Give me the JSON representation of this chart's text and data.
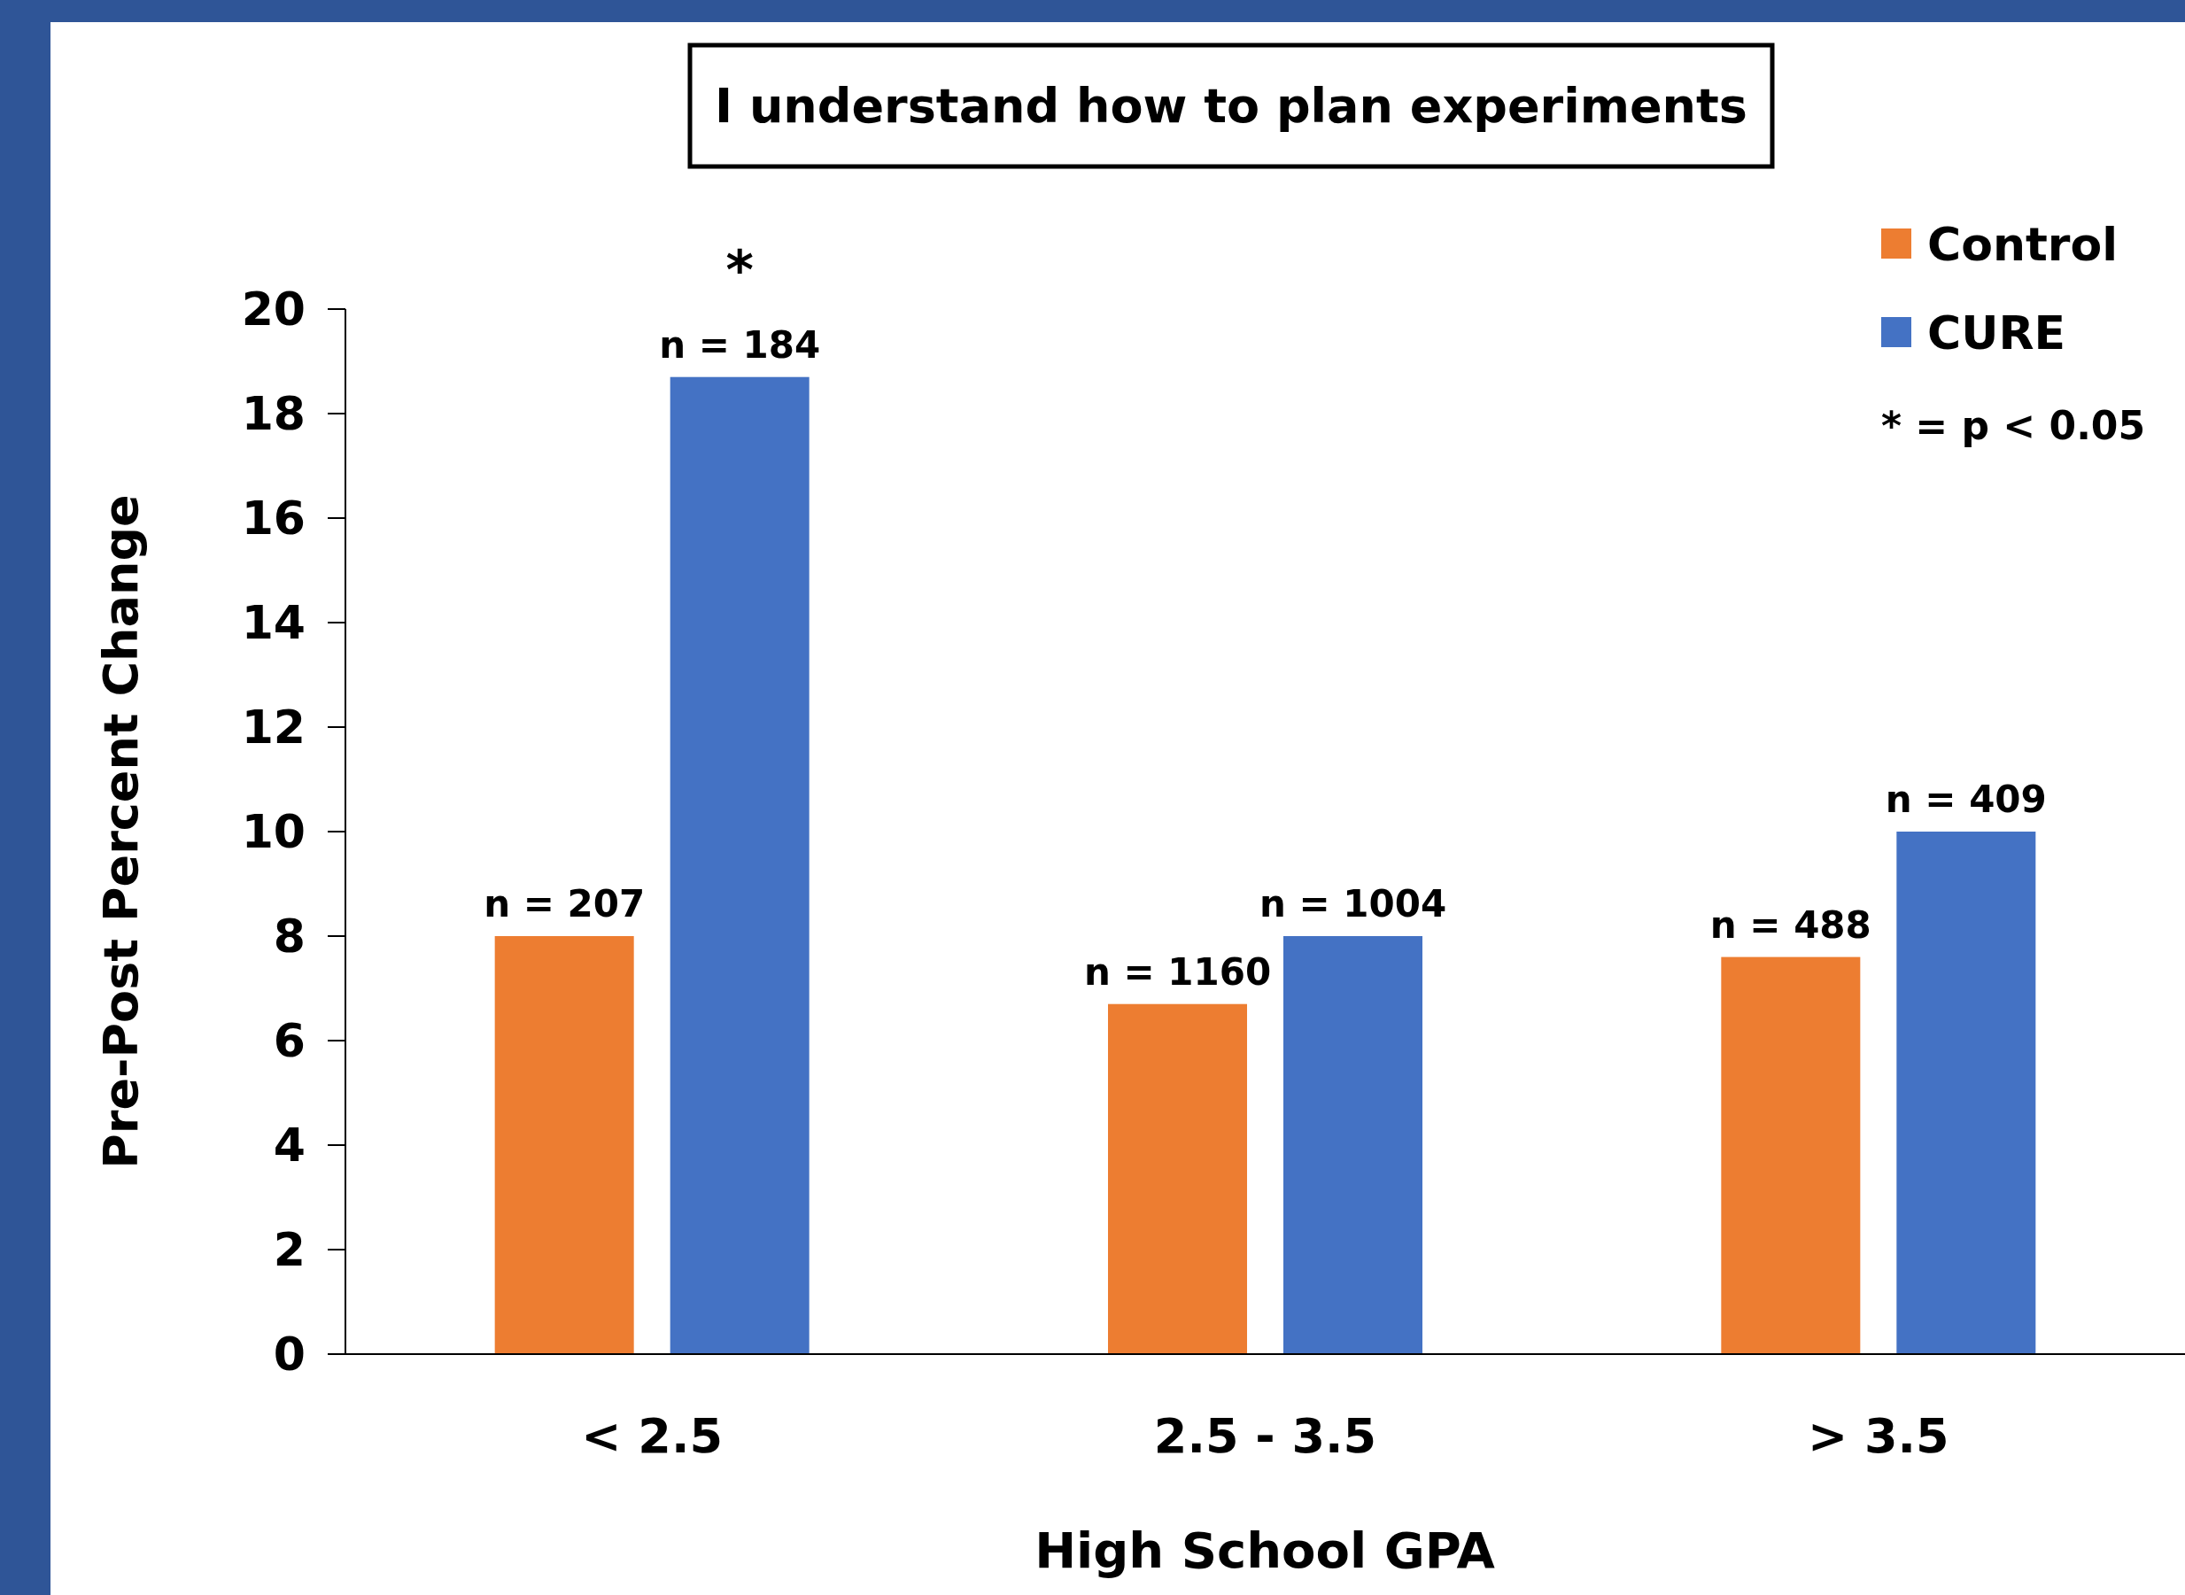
{
  "chart_data": {
    "type": "bar",
    "title": "I understand how to plan experiments",
    "xlabel": "High School GPA",
    "ylabel": "Pre-Post Percent Change",
    "categories": [
      "< 2.5",
      "2.5 - 3.5",
      "> 3.5"
    ],
    "series": [
      {
        "name": "Control",
        "color": "#ed7d31",
        "values": [
          8.0,
          6.7,
          7.6
        ]
      },
      {
        "name": "CURE",
        "color": "#4472c4",
        "values": [
          18.7,
          8.0,
          10.0
        ]
      }
    ],
    "ylim": [
      0,
      20
    ],
    "yticks": [
      0,
      2,
      4,
      6,
      8,
      10,
      12,
      14,
      16,
      18,
      20
    ],
    "grid": false,
    "legend": "top right",
    "annotations": [
      "n = 207",
      "n = 184",
      "n = 1160",
      "n = 1004",
      "n = 488",
      "n = 409",
      "*",
      "* = p < 0.05"
    ]
  }
}
